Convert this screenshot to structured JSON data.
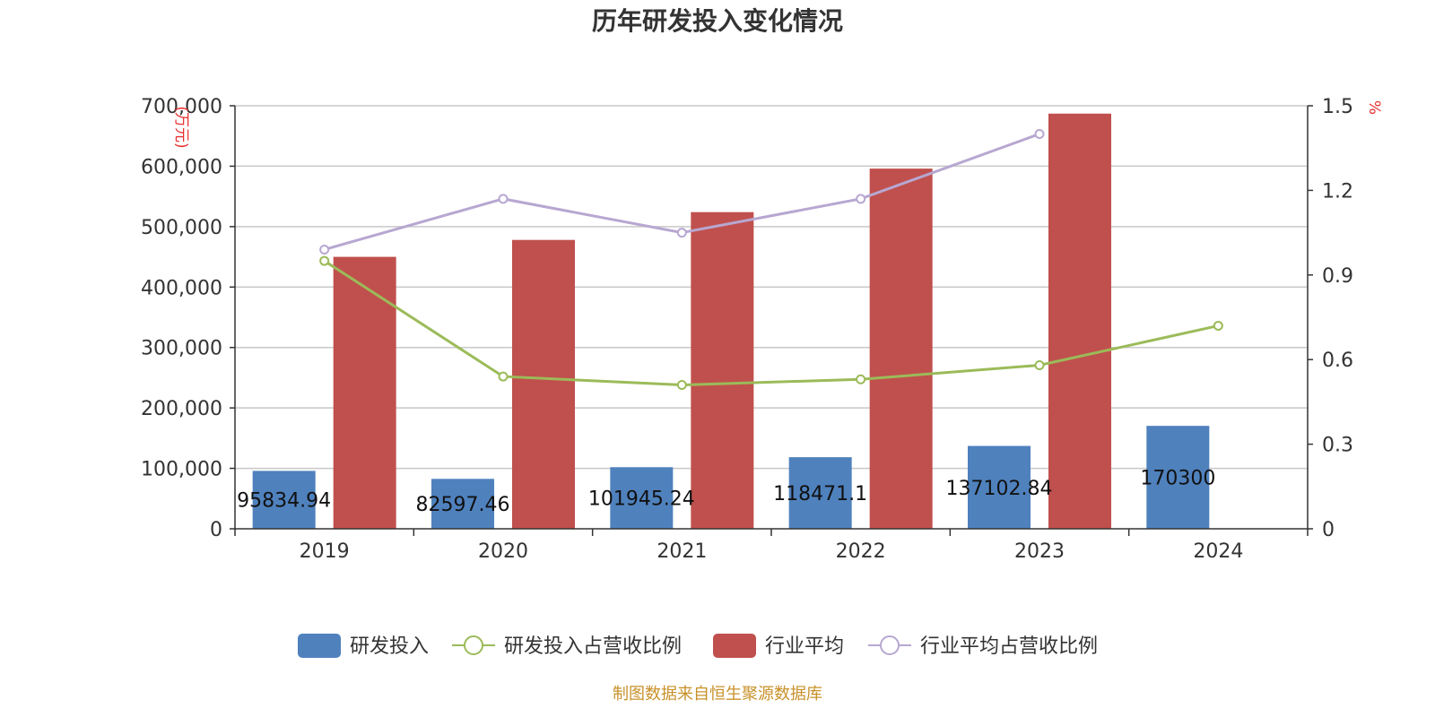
{
  "chart_data": {
    "type": "bar",
    "title": "历年研发投入变化情况",
    "categories": [
      "2019",
      "2020",
      "2021",
      "2022",
      "2023",
      "2024"
    ],
    "y_left": {
      "unit": "万元",
      "min": 0,
      "max": 700000,
      "ticks": [
        0,
        100000,
        200000,
        300000,
        400000,
        500000,
        600000,
        700000
      ],
      "tick_labels": [
        "0",
        "100,000",
        "200,000",
        "300,000",
        "400,000",
        "500,000",
        "600,000",
        "700,000"
      ]
    },
    "y_right": {
      "unit": "%",
      "min": 0,
      "max": 1.5,
      "ticks": [
        0,
        0.3,
        0.6,
        0.9,
        1.2,
        1.5
      ],
      "tick_labels": [
        "0",
        "0.3",
        "0.6",
        "0.9",
        "1.2",
        "1.5"
      ]
    },
    "grid": true,
    "legend_position": "bottom",
    "series": [
      {
        "name": "研发投入",
        "type": "bar",
        "axis": "left",
        "color": "#4f81bd",
        "values": [
          95834.94,
          82597.46,
          101945.24,
          118471.1,
          137102.84,
          170300
        ],
        "labels": [
          "95834.94",
          "82597.46",
          "101945.24",
          "118471.1",
          "137102.84",
          "170300"
        ]
      },
      {
        "name": "研发投入占营收比例",
        "type": "line",
        "axis": "right",
        "color": "#9bbb59",
        "values": [
          0.95,
          0.54,
          0.51,
          0.53,
          0.58,
          0.72
        ]
      },
      {
        "name": "行业平均",
        "type": "bar",
        "axis": "left",
        "color": "#c0504d",
        "values": [
          450000,
          478000,
          524000,
          596000,
          687000,
          null
        ]
      },
      {
        "name": "行业平均占营收比例",
        "type": "line",
        "axis": "right",
        "color": "#b7a7d1",
        "values": [
          0.99,
          1.17,
          1.05,
          1.17,
          1.4,
          null
        ]
      }
    ]
  },
  "source": "制图数据来自恒生聚源数据库"
}
